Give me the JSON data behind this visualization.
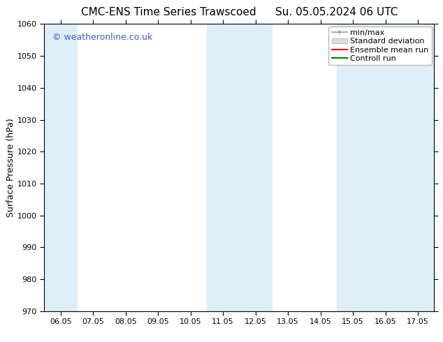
{
  "title_left": "CMC-ENS Time Series Trawscoed",
  "title_right": "Su. 05.05.2024 06 UTC",
  "ylabel": "Surface Pressure (hPa)",
  "ylim": [
    970,
    1060
  ],
  "yticks": [
    970,
    980,
    990,
    1000,
    1010,
    1020,
    1030,
    1040,
    1050,
    1060
  ],
  "x_labels": [
    "06.05",
    "07.05",
    "08.05",
    "09.05",
    "10.05",
    "11.05",
    "12.05",
    "13.05",
    "14.05",
    "15.05",
    "16.05",
    "17.05"
  ],
  "x_values": [
    0,
    1,
    2,
    3,
    4,
    5,
    6,
    7,
    8,
    9,
    10,
    11
  ],
  "xlim": [
    -0.5,
    11.5
  ],
  "background_color": "#ffffff",
  "plot_bg_color": "#ffffff",
  "shaded_bands": [
    {
      "x_start": -0.5,
      "x_end": 0.5,
      "color": "#ddeef8"
    },
    {
      "x_start": 4.5,
      "x_end": 6.5,
      "color": "#ddeef8"
    },
    {
      "x_start": 8.5,
      "x_end": 11.5,
      "color": "#ddeef8"
    }
  ],
  "watermark_text": "© weatheronline.co.uk",
  "watermark_color": "#3a5fcd",
  "legend_items": [
    {
      "label": "min/max",
      "color": "#999999",
      "type": "errorbar"
    },
    {
      "label": "Standard deviation",
      "color": "#cccccc",
      "type": "bar"
    },
    {
      "label": "Ensemble mean run",
      "color": "#ff0000",
      "type": "line"
    },
    {
      "label": "Controll run",
      "color": "#008000",
      "type": "line"
    }
  ],
  "title_fontsize": 11,
  "tick_fontsize": 8,
  "label_fontsize": 9,
  "watermark_fontsize": 9,
  "legend_fontsize": 8
}
